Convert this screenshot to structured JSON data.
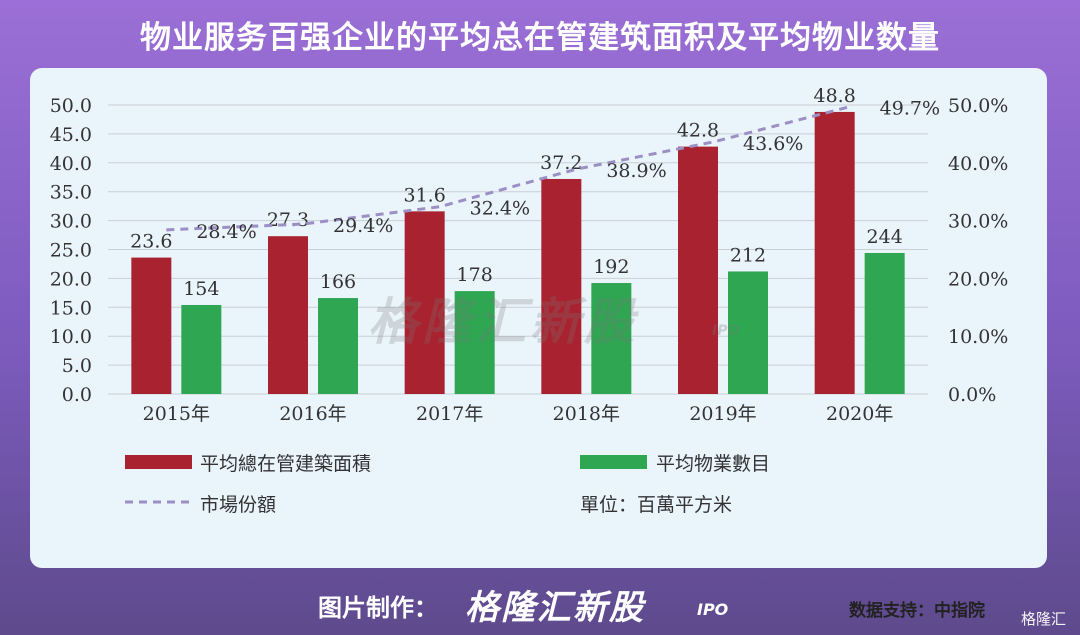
{
  "title": "物业服务百强企业的平均总在管建筑面积及平均物业数量",
  "chart_data": {
    "type": "bar",
    "categories": [
      "2015年",
      "2016年",
      "2017年",
      "2018年",
      "2019年",
      "2020年"
    ],
    "series": [
      {
        "name": "平均總在管建築面積",
        "type": "bar",
        "axis": "left",
        "color": "#a8232f",
        "values": [
          23.6,
          27.3,
          31.6,
          37.2,
          42.8,
          48.8
        ]
      },
      {
        "name": "平均物業數目",
        "type": "bar",
        "axis": "left",
        "color": "#2ea652",
        "values": [
          154,
          166,
          178,
          192,
          212,
          244
        ]
      },
      {
        "name": "市場份額",
        "type": "line",
        "axis": "right",
        "color": "#9b8fc4",
        "values": [
          28.4,
          29.4,
          32.4,
          38.9,
          43.6,
          49.7
        ]
      }
    ],
    "data_labels": {
      "area": [
        "23.6",
        "27.3",
        "31.6",
        "37.2",
        "42.8",
        "48.8"
      ],
      "count": [
        "154",
        "166",
        "178",
        "192",
        "212",
        "244"
      ],
      "share": [
        "28.4%",
        "29.4%",
        "32.4%",
        "38.9%",
        "43.6%",
        "49.7%"
      ]
    },
    "count_display_values": [
      15.4,
      16.6,
      17.8,
      19.2,
      21.2,
      24.4
    ],
    "ylim_left": [
      0,
      50
    ],
    "yticks_left": [
      "0.0",
      "5.0",
      "10.0",
      "15.0",
      "20.0",
      "25.0",
      "30.0",
      "35.0",
      "40.0",
      "45.0",
      "50.0"
    ],
    "ylim_right": [
      0,
      50
    ],
    "yticks_right": [
      "0.0%",
      "10.0%",
      "20.0%",
      "30.0%",
      "40.0%",
      "50.0%"
    ],
    "grid": true,
    "legend_position": "bottom"
  },
  "legend": {
    "area": "平均總在管建築面積",
    "count": "平均物業數目",
    "share": "市場份額",
    "unit": "單位：百萬平方米"
  },
  "source": "数据支持：中指院",
  "footer": {
    "label": "图片制作：",
    "brand": "格隆汇新股",
    "brand_suffix": "IPO",
    "corner": "格隆汇"
  },
  "watermark": {
    "text": "格隆汇新股",
    "suffix": "IPO"
  },
  "colors": {
    "area_bar": "#a8232f",
    "count_bar": "#2ea652",
    "share_line": "#9b8fc4"
  }
}
